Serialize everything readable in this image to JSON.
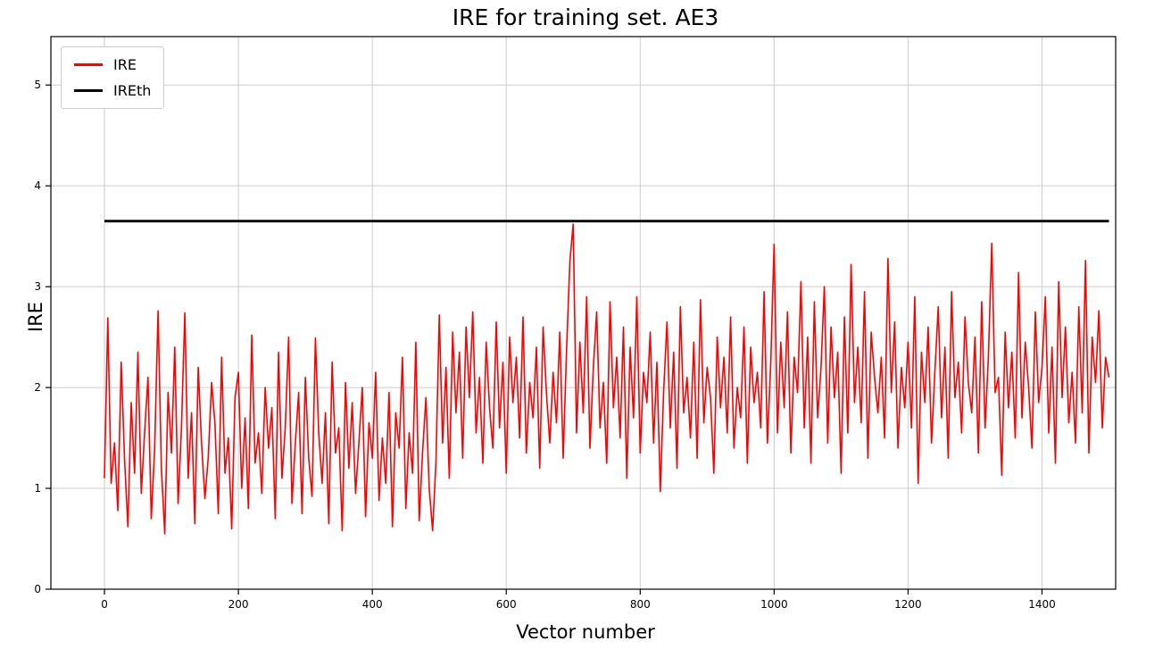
{
  "title": "IRE for training set. AE3",
  "chart_data": {
    "type": "line",
    "title": "IRE for training set. AE3",
    "xlabel": "Vector number",
    "ylabel": "IRE",
    "xlim": [
      -80,
      1510
    ],
    "ylim": [
      0,
      5.48
    ],
    "xticks": [
      0,
      200,
      400,
      600,
      800,
      1000,
      1200,
      1400
    ],
    "yticks": [
      0,
      1,
      2,
      3,
      4,
      5
    ],
    "grid": true,
    "grid_color": "#cccccc",
    "spine_color": "#000000",
    "legend": {
      "position": "upper-left",
      "entries": [
        {
          "label": "IRE",
          "color": "#ff0000"
        },
        {
          "label": "IREth",
          "color": "#000000"
        }
      ]
    },
    "series": [
      {
        "name": "IRE",
        "type": "line",
        "color": "#ff0000",
        "line_width": 1.6,
        "x_start": 0,
        "x_step": 5,
        "values": [
          1.1,
          2.69,
          1.05,
          1.45,
          0.78,
          2.25,
          1.3,
          0.62,
          1.85,
          1.15,
          2.35,
          0.95,
          1.55,
          2.1,
          0.7,
          1.4,
          2.76,
          1.2,
          0.55,
          1.95,
          1.35,
          2.4,
          0.85,
          1.6,
          2.74,
          1.1,
          1.75,
          0.65,
          2.2,
          1.45,
          0.9,
          1.3,
          2.05,
          1.65,
          0.75,
          2.3,
          1.15,
          1.5,
          0.6,
          1.9,
          2.15,
          1.0,
          1.7,
          0.8,
          2.52,
          1.25,
          1.55,
          0.95,
          2.0,
          1.4,
          1.8,
          0.7,
          2.35,
          1.1,
          1.6,
          2.5,
          0.85,
          1.45,
          1.95,
          0.75,
          2.1,
          1.3,
          0.92,
          2.49,
          1.55,
          1.05,
          1.75,
          0.65,
          2.25,
          1.35,
          1.6,
          0.58,
          2.05,
          1.2,
          1.85,
          0.95,
          1.45,
          2.0,
          0.72,
          1.65,
          1.3,
          2.15,
          0.88,
          1.5,
          1.05,
          1.95,
          0.62,
          1.75,
          1.4,
          2.3,
          0.8,
          1.55,
          1.15,
          2.45,
          0.68,
          1.35,
          1.9,
          1.0,
          0.58,
          1.25,
          2.72,
          1.45,
          2.2,
          1.1,
          2.55,
          1.75,
          2.35,
          1.3,
          2.6,
          1.9,
          2.75,
          1.55,
          2.1,
          1.25,
          2.45,
          1.8,
          1.4,
          2.65,
          1.6,
          2.25,
          1.15,
          2.5,
          1.85,
          2.3,
          1.5,
          2.7,
          1.35,
          2.05,
          1.7,
          2.4,
          1.2,
          2.6,
          1.95,
          1.45,
          2.15,
          1.65,
          2.55,
          1.3,
          2.35,
          3.25,
          3.62,
          1.55,
          2.45,
          1.75,
          2.9,
          1.4,
          2.2,
          2.75,
          1.6,
          2.05,
          1.25,
          2.85,
          1.8,
          2.3,
          1.5,
          2.6,
          1.1,
          2.4,
          1.7,
          2.9,
          1.35,
          2.15,
          1.85,
          2.55,
          1.45,
          2.25,
          0.97,
          1.95,
          2.65,
          1.6,
          2.35,
          1.2,
          2.8,
          1.75,
          2.1,
          1.5,
          2.45,
          1.3,
          2.87,
          1.65,
          2.2,
          1.9,
          1.15,
          2.5,
          1.8,
          2.3,
          1.55,
          2.7,
          1.4,
          2.0,
          1.7,
          2.6,
          1.25,
          2.4,
          1.85,
          2.15,
          1.6,
          2.95,
          1.45,
          2.25,
          3.42,
          1.55,
          2.45,
          1.8,
          2.75,
          1.35,
          2.3,
          1.95,
          3.05,
          1.6,
          2.5,
          1.25,
          2.85,
          1.7,
          2.2,
          3.0,
          1.45,
          2.6,
          1.9,
          2.35,
          1.15,
          2.7,
          1.55,
          3.22,
          1.85,
          2.4,
          1.65,
          2.95,
          1.3,
          2.55,
          2.1,
          1.75,
          2.3,
          1.5,
          3.28,
          1.95,
          2.65,
          1.4,
          2.2,
          1.8,
          2.45,
          1.6,
          2.9,
          1.05,
          2.35,
          1.85,
          2.6,
          1.45,
          2.15,
          2.8,
          1.7,
          2.4,
          1.3,
          2.95,
          1.9,
          2.25,
          1.55,
          2.7,
          2.05,
          1.75,
          2.5,
          1.35,
          2.85,
          1.6,
          2.3,
          3.43,
          1.95,
          2.1,
          1.13,
          2.55,
          1.8,
          2.35,
          1.5,
          3.14,
          1.7,
          2.45,
          2.0,
          1.4,
          2.75,
          1.85,
          2.2,
          2.9,
          1.55,
          2.4,
          1.25,
          3.05,
          1.9,
          2.6,
          1.65,
          2.15,
          1.45,
          2.8,
          1.75,
          3.26,
          1.35,
          2.5,
          2.05,
          2.76,
          1.6,
          2.3,
          2.1
        ]
      },
      {
        "name": "IREth",
        "type": "hline",
        "color": "#000000",
        "line_width": 2.8,
        "x_range": [
          0,
          1500
        ],
        "value": 3.65
      }
    ]
  }
}
